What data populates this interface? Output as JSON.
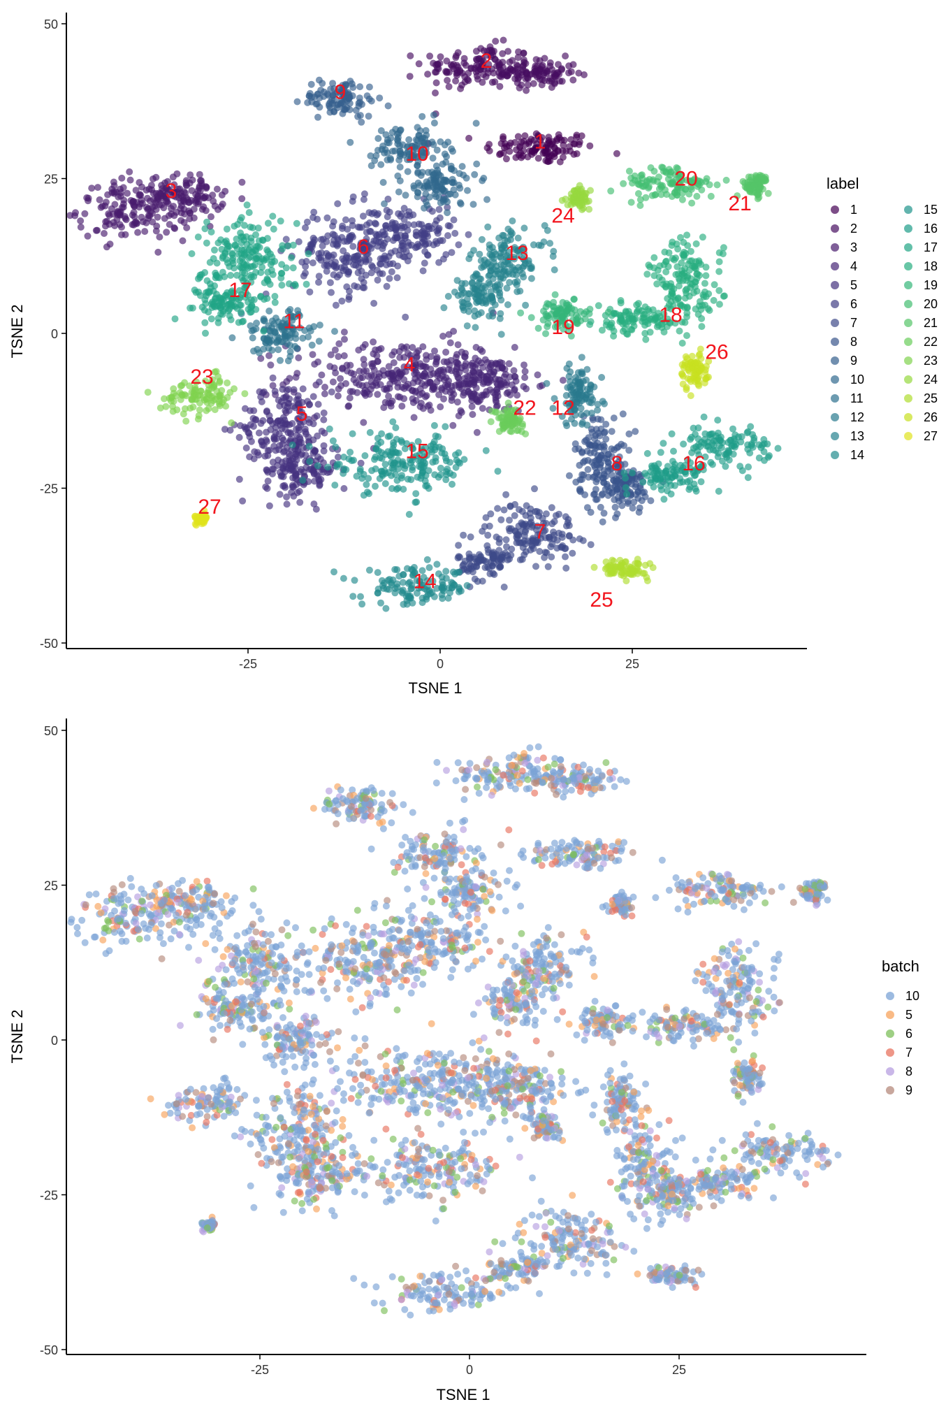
{
  "chart_data": [
    {
      "type": "scatter",
      "xlabel": "TSNE 1",
      "ylabel": "TSNE 2",
      "xticks": [
        -25,
        0,
        25
      ],
      "yticks": [
        -50,
        -25,
        0,
        25,
        50
      ],
      "xlim": [
        -49,
        48
      ],
      "ylim": [
        -51,
        53
      ],
      "legend_title": "label",
      "legend_placement": "right",
      "legend_columns": 2,
      "legend_items": [
        "1",
        "2",
        "3",
        "4",
        "5",
        "6",
        "7",
        "8",
        "9",
        "10",
        "11",
        "12",
        "13",
        "14",
        "15",
        "16",
        "17",
        "18",
        "19",
        "20",
        "21",
        "22",
        "23",
        "24",
        "25",
        "26",
        "27"
      ],
      "palette": [
        "#440154",
        "#470E61",
        "#481B6D",
        "#472676",
        "#45327F",
        "#423F85",
        "#3E4A89",
        "#39558C",
        "#35608D",
        "#31698E",
        "#2D718E",
        "#297A8E",
        "#26828E",
        "#228B8D",
        "#1F948C",
        "#1E9C89",
        "#21A585",
        "#28AE80",
        "#34B679",
        "#43BE71",
        "#55C568",
        "#6ACD5B",
        "#80D34E",
        "#96D83F",
        "#AFDD2F",
        "#C8E020",
        "#E0E31C"
      ],
      "cluster_labels": [
        {
          "text": "1",
          "x": 13,
          "y": 31
        },
        {
          "text": "2",
          "x": 6,
          "y": 44
        },
        {
          "text": "3",
          "x": -35,
          "y": 23
        },
        {
          "text": "4",
          "x": -4,
          "y": -5
        },
        {
          "text": "5",
          "x": -18,
          "y": -13
        },
        {
          "text": "6",
          "x": -10,
          "y": 14
        },
        {
          "text": "7",
          "x": 13,
          "y": -32
        },
        {
          "text": "8",
          "x": 23,
          "y": -21
        },
        {
          "text": "9",
          "x": -13,
          "y": 39
        },
        {
          "text": "10",
          "x": -3,
          "y": 29
        },
        {
          "text": "11",
          "x": -19,
          "y": 2
        },
        {
          "text": "12",
          "x": 16,
          "y": -12
        },
        {
          "text": "13",
          "x": 10,
          "y": 13
        },
        {
          "text": "14",
          "x": -2,
          "y": -40
        },
        {
          "text": "15",
          "x": -3,
          "y": -19
        },
        {
          "text": "16",
          "x": 33,
          "y": -21
        },
        {
          "text": "17",
          "x": -26,
          "y": 7
        },
        {
          "text": "18",
          "x": 30,
          "y": 3
        },
        {
          "text": "19",
          "x": 16,
          "y": 1
        },
        {
          "text": "20",
          "x": 32,
          "y": 25
        },
        {
          "text": "21",
          "x": 39,
          "y": 21
        },
        {
          "text": "22",
          "x": 11,
          "y": -12
        },
        {
          "text": "23",
          "x": -31,
          "y": -7
        },
        {
          "text": "24",
          "x": 16,
          "y": 19
        },
        {
          "text": "25",
          "x": 21,
          "y": -43
        },
        {
          "text": "26",
          "x": 36,
          "y": -3
        },
        {
          "text": "27",
          "x": -30,
          "y": -28
        }
      ]
    },
    {
      "type": "scatter",
      "xlabel": "TSNE 1",
      "ylabel": "TSNE 2",
      "xticks": [
        -25,
        0,
        25
      ],
      "yticks": [
        -50,
        -25,
        0,
        25,
        50
      ],
      "xlim": [
        -49,
        48
      ],
      "ylim": [
        -51,
        53
      ],
      "legend_title": "batch",
      "legend_placement": "right",
      "legend_columns": 1,
      "legend_items": [
        "10",
        "5",
        "6",
        "7",
        "8",
        "9"
      ],
      "palette": [
        "#7BA3D6",
        "#F7A35C",
        "#7DBF5B",
        "#E8735F",
        "#B79FE0",
        "#B58A7C"
      ]
    }
  ]
}
